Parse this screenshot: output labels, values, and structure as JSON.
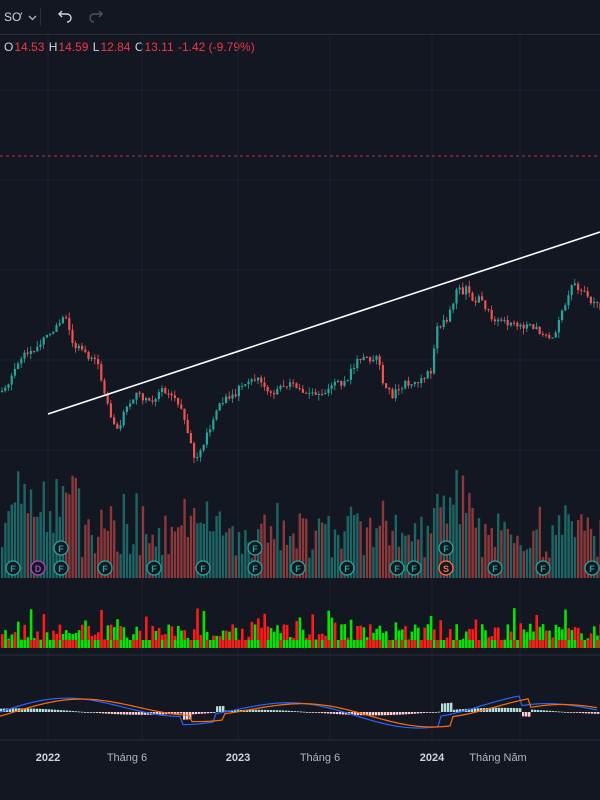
{
  "toolbar": {
    "interval_label": "SƠ",
    "undo_icon": "undo-icon",
    "redo_icon": "redo-icon",
    "dropdown_icon": "chevron-down-icon"
  },
  "ohlc": {
    "o_label": "O",
    "o_value": "14.53",
    "h_label": "H",
    "h_value": "14.59",
    "l_label": "L",
    "l_value": "12.84",
    "c_label": "C",
    "c_value": "13.11",
    "change": "-1.42 (-9.79%)"
  },
  "x_axis": {
    "labels": [
      "2022",
      "Tháng 6",
      "2023",
      "Tháng 6",
      "2024",
      "Tháng Năm"
    ]
  },
  "event_markers": {
    "bottom_row": [
      "F",
      "D",
      "F",
      "F",
      "F",
      "F",
      "F",
      "F",
      "F",
      "F",
      "F",
      "S",
      "F",
      "F",
      "F",
      "F"
    ],
    "top_row": [
      "F",
      "F",
      "F"
    ]
  },
  "colors": {
    "background": "#131722",
    "up": "#26a69a",
    "down": "#ef5350",
    "trendline": "#ffffff",
    "dashed_line": "#f23645",
    "vol2_up": "#00e600",
    "vol2_down": "#ff1a1a",
    "macd_line": "#2962ff",
    "signal_line": "#ff6d00"
  }
}
